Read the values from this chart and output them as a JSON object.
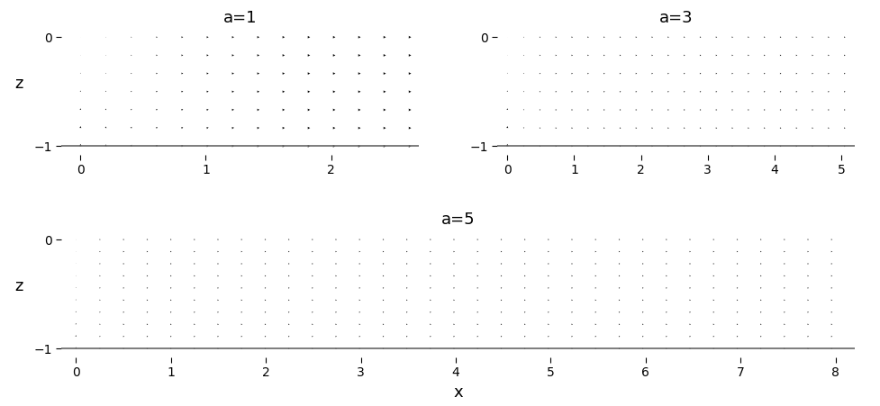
{
  "title_fontsize": 13,
  "label_fontsize": 13,
  "cases": [
    {
      "a": 1,
      "xlim": [
        -0.15,
        2.7
      ],
      "xmax": 2.7,
      "xticks": [
        0,
        1,
        2
      ],
      "ylim": [
        -1.08,
        0.08
      ],
      "yticks": [
        -1,
        0
      ],
      "nx": 14,
      "nz": 7
    },
    {
      "a": 3,
      "xlim": [
        -0.15,
        5.2
      ],
      "xmax": 5.2,
      "xticks": [
        0,
        1,
        2,
        3,
        4,
        5
      ],
      "ylim": [
        -1.08,
        0.08
      ],
      "yticks": [
        -1,
        0
      ],
      "nx": 22,
      "nz": 7
    },
    {
      "a": 5,
      "xlim": [
        -0.15,
        8.2
      ],
      "xmax": 8.2,
      "xticks": [
        0,
        1,
        2,
        3,
        4,
        5,
        6,
        7,
        8
      ],
      "ylim": [
        -1.08,
        0.08
      ],
      "yticks": [
        -1,
        0
      ],
      "nx": 33,
      "nz": 10
    }
  ],
  "background_color": "#ffffff",
  "arrow_color": "black"
}
